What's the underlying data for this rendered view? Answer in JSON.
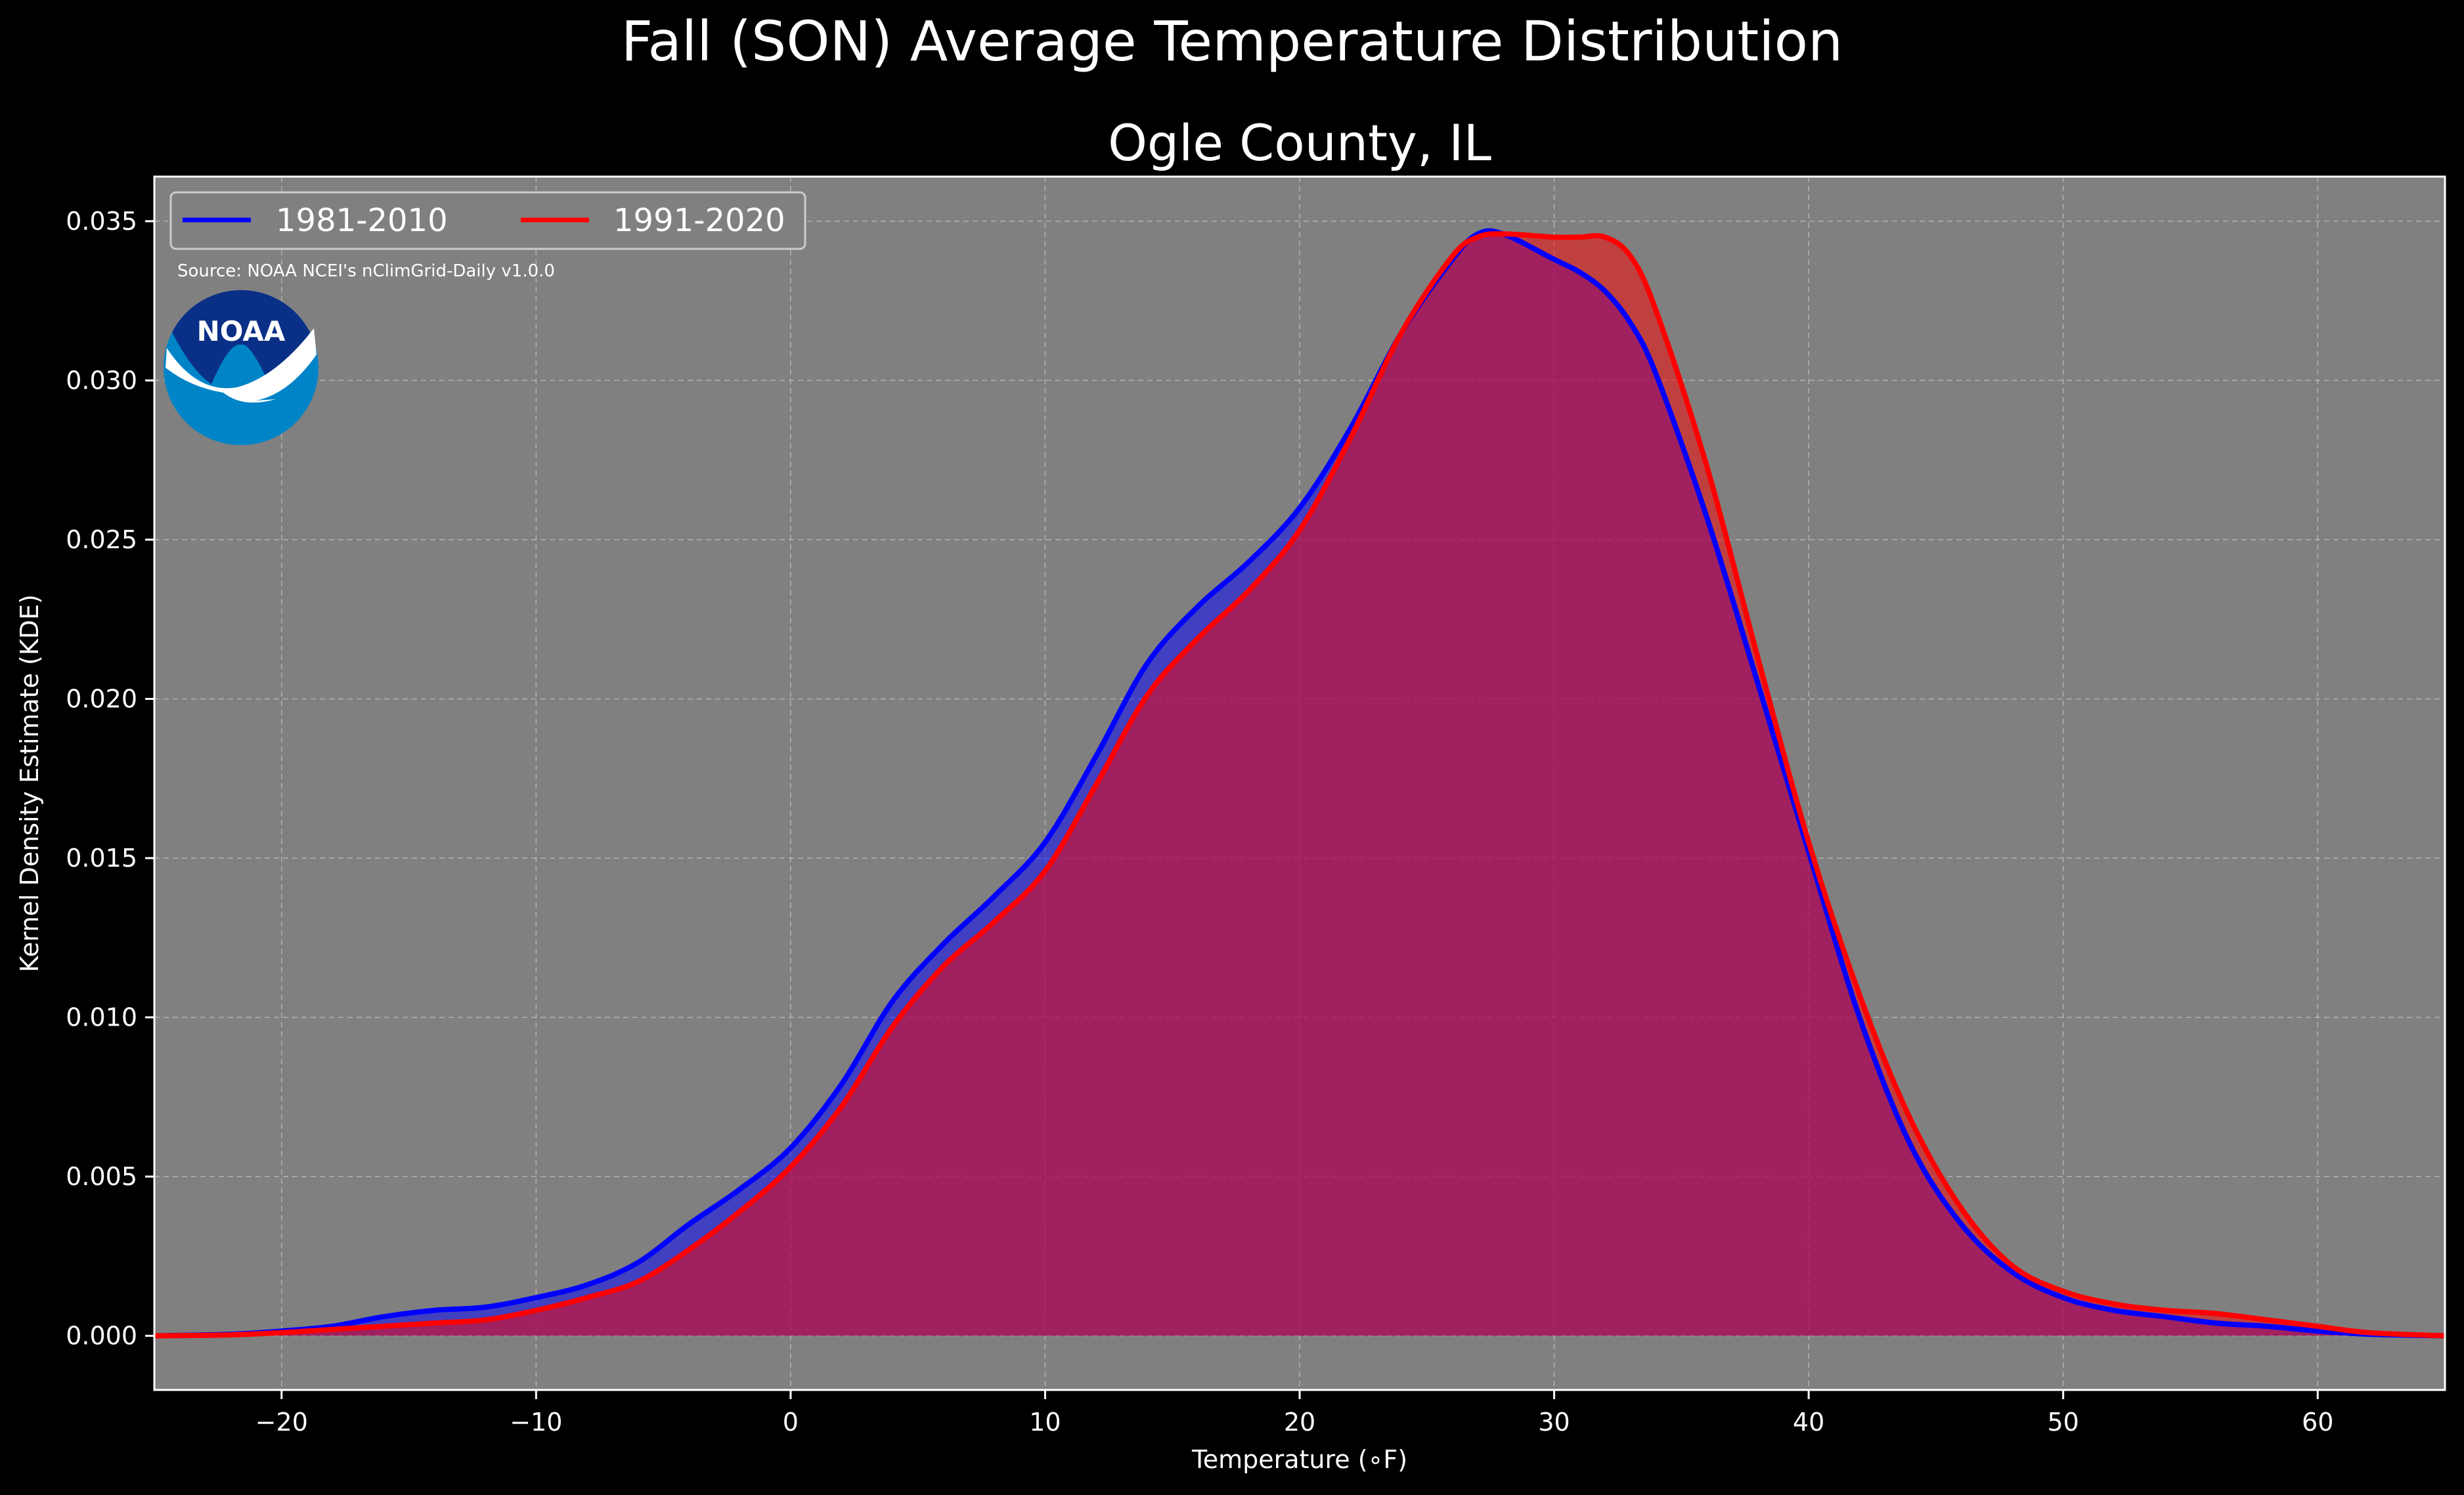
{
  "chart_data": {
    "type": "area",
    "title": "Fall (SON) Average Temperature Distribution",
    "subtitle": "Ogle County, IL",
    "xlabel": "Temperature ($^\\circ$F)",
    "xlabel_display": "Temperature (∘F)",
    "ylabel": "Kernel Density Estimate (KDE)",
    "xlim": [
      -25,
      65
    ],
    "ylim": [
      -0.0017,
      0.0364
    ],
    "xticks": [
      -20,
      -10,
      0,
      10,
      20,
      30,
      40,
      50,
      60
    ],
    "xtick_labels": [
      "−20",
      "−10",
      "0",
      "10",
      "20",
      "30",
      "40",
      "50",
      "60"
    ],
    "yticks": [
      0.0,
      0.005,
      0.01,
      0.015,
      0.02,
      0.025,
      0.03,
      0.035
    ],
    "ytick_labels": [
      "0.000",
      "0.005",
      "0.010",
      "0.015",
      "0.020",
      "0.025",
      "0.030",
      "0.035"
    ],
    "grid": true,
    "legend_position": "top-left",
    "source": "Source: NOAA NCEI's nClimGrid-Daily v1.0.0",
    "logo_text": "NOAA",
    "colors": {
      "background": "#000000",
      "plot_bg": "#808080",
      "series1": "#0000ff",
      "series2": "#ff0000",
      "fill_overlap": "#9c1f5c",
      "logo_outer": "#0084c8",
      "logo_inner": "#0a2f87"
    },
    "x": [
      -25,
      -22,
      -20,
      -18,
      -16,
      -14,
      -12,
      -10,
      -8,
      -6,
      -4,
      -2,
      0,
      2,
      4,
      6,
      8,
      10,
      12,
      14,
      16,
      18,
      20,
      22,
      24,
      26,
      27,
      28,
      30,
      31,
      32,
      33,
      34,
      36,
      38,
      40,
      42,
      44,
      46,
      48,
      50,
      52,
      54,
      56,
      58,
      60,
      62,
      65
    ],
    "series": [
      {
        "name": "1981-2010",
        "color": "#0000ff",
        "values": [
          0.0,
          5e-05,
          0.00015,
          0.0003,
          0.0006,
          0.0008,
          0.0009,
          0.0012,
          0.0016,
          0.0023,
          0.0035,
          0.0046,
          0.0059,
          0.0079,
          0.0105,
          0.0123,
          0.0138,
          0.0155,
          0.0182,
          0.0211,
          0.0229,
          0.0243,
          0.026,
          0.0285,
          0.0315,
          0.0338,
          0.0346,
          0.0346,
          0.0338,
          0.0334,
          0.0328,
          0.0318,
          0.0302,
          0.0257,
          0.0205,
          0.0152,
          0.01,
          0.006,
          0.0035,
          0.002,
          0.0012,
          0.0008,
          0.0006,
          0.0004,
          0.0003,
          0.00015,
          5e-05,
          0.0
        ]
      },
      {
        "name": "1991-2020",
        "color": "#ff0000",
        "values": [
          0.0,
          3e-05,
          0.0001,
          0.0002,
          0.0003,
          0.0004,
          0.0005,
          0.0008,
          0.0012,
          0.0017,
          0.0027,
          0.0039,
          0.0053,
          0.0072,
          0.0097,
          0.0116,
          0.013,
          0.0146,
          0.0173,
          0.0201,
          0.0219,
          0.0234,
          0.0253,
          0.0282,
          0.0315,
          0.0339,
          0.0345,
          0.0346,
          0.0345,
          0.0345,
          0.0345,
          0.0339,
          0.0322,
          0.0273,
          0.0213,
          0.0155,
          0.0107,
          0.0068,
          0.004,
          0.0022,
          0.0014,
          0.001,
          0.0008,
          0.0007,
          0.0005,
          0.0003,
          0.0001,
          0.0
        ]
      }
    ]
  }
}
